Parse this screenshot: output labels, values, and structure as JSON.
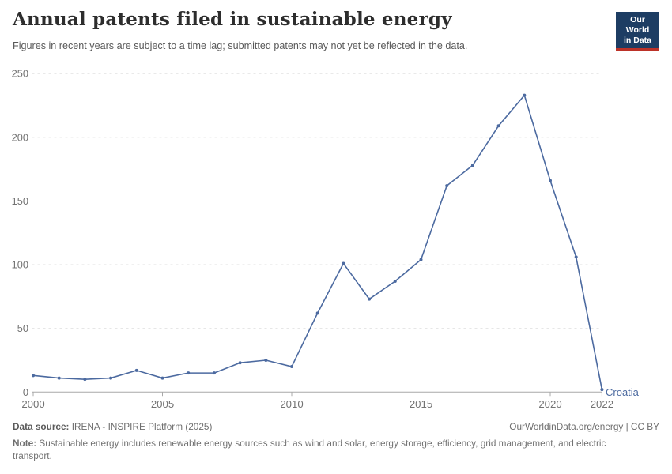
{
  "header": {
    "title": "Annual patents filed in sustainable energy",
    "subtitle": "Figures in recent years are subject to a time lag; submitted patents may not yet be reflected in the data.",
    "logo": {
      "line1": "Our World",
      "line2": "in Data"
    }
  },
  "chart_data": {
    "type": "line",
    "title": "Annual patents filed in sustainable energy",
    "xlabel": "",
    "ylabel": "",
    "xlim": [
      2000,
      2022
    ],
    "ylim": [
      0,
      250
    ],
    "x_ticks": [
      2000,
      2005,
      2010,
      2015,
      2020,
      2022
    ],
    "y_ticks": [
      0,
      50,
      100,
      150,
      200,
      250
    ],
    "grid": "horizontal-dashed",
    "legend_position": "end-of-line-label",
    "colors": {
      "line": "#4C6AA0",
      "gridline": "#e2e2e2",
      "axis": "#a8a8a8",
      "tick_text": "#737373"
    },
    "series": [
      {
        "name": "Croatia",
        "color": "#4C6AA0",
        "x": [
          2000,
          2001,
          2002,
          2003,
          2004,
          2005,
          2006,
          2007,
          2008,
          2009,
          2010,
          2011,
          2012,
          2013,
          2014,
          2015,
          2016,
          2017,
          2018,
          2019,
          2020,
          2021,
          2022
        ],
        "values": [
          13,
          11,
          10,
          11,
          17,
          11,
          15,
          15,
          23,
          25,
          20,
          62,
          101,
          73,
          87,
          104,
          162,
          178,
          209,
          233,
          166,
          106,
          2
        ]
      }
    ]
  },
  "footer": {
    "datasource_label": "Data source:",
    "datasource_value": " IRENA - INSPIRE Platform (2025)",
    "rights": "OurWorldinData.org/energy | CC BY",
    "note_label": "Note:",
    "note_value": " Sustainable energy includes renewable energy sources such as wind and solar, energy storage, efficiency, grid management, and electric transport."
  }
}
